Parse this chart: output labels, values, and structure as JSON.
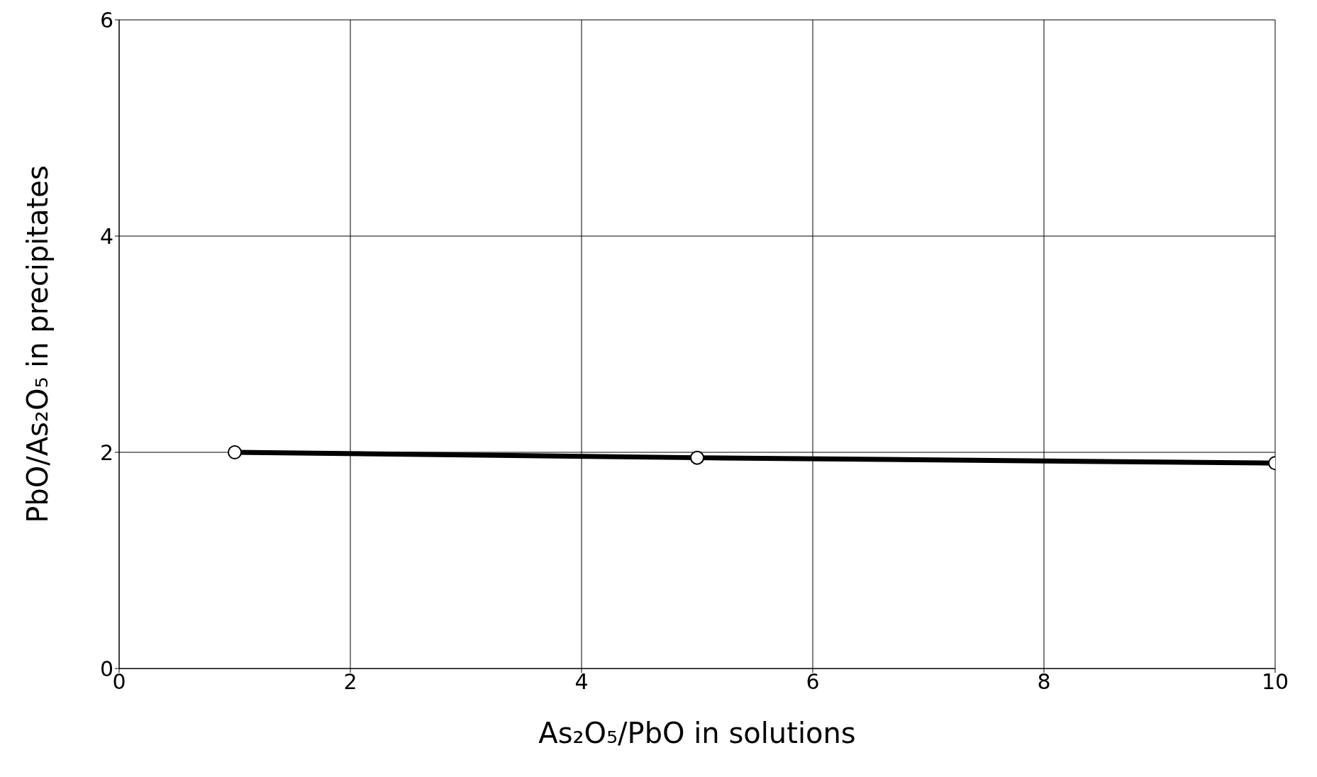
{
  "chart_data": {
    "type": "line",
    "xlabel": "As₂O₅/PbO in solutions",
    "ylabel": "PbO/As₂O₅ in precipitates",
    "x": [
      1,
      5,
      10
    ],
    "series": [
      {
        "color": "#000000",
        "values": [
          2.0,
          1.95,
          1.9
        ]
      }
    ],
    "xlim": [
      0,
      10
    ],
    "xticks": [
      0,
      2,
      4,
      6,
      8,
      10
    ],
    "ylim": [
      0,
      6
    ],
    "yticks": [
      0,
      2,
      4,
      6
    ],
    "grid": true,
    "marker": "circle",
    "line_style": "solid"
  }
}
